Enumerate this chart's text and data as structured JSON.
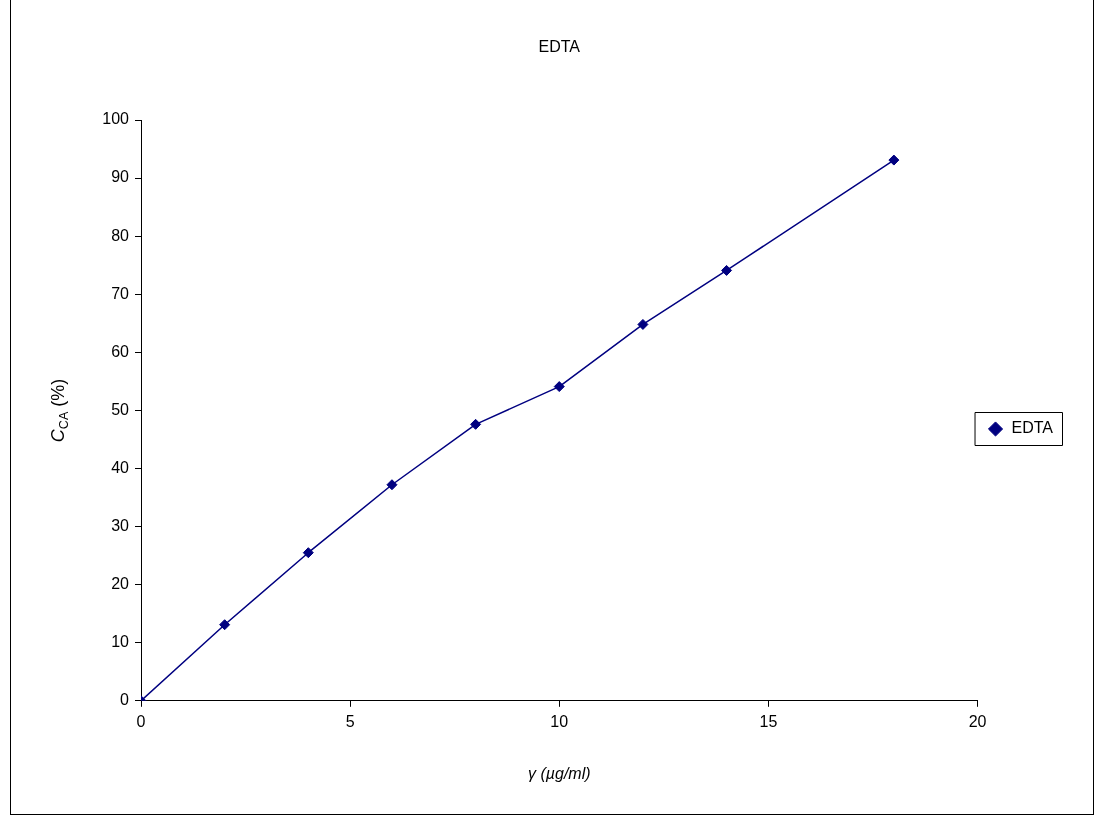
{
  "chart_data": {
    "type": "line",
    "title": "EDTA",
    "xlabel": "γ (µg/ml)",
    "ylabel": "C$_{CA}$ (%)",
    "x": [
      0,
      2,
      4,
      6,
      8,
      10,
      12,
      14,
      18
    ],
    "series": [
      {
        "name": "EDTA",
        "color": "#000080",
        "values": [
          0,
          13.1,
          25.5,
          37.2,
          47.6,
          54.1,
          64.8,
          74.1,
          93.1
        ]
      }
    ],
    "xlim": [
      0,
      20
    ],
    "xticks": [
      0,
      5,
      10,
      15,
      20
    ],
    "ylim": [
      0,
      100
    ],
    "yticks": [
      0,
      10,
      20,
      30,
      40,
      50,
      60,
      70,
      80,
      90,
      100
    ],
    "grid": false,
    "legend": "right",
    "marker": "diamond",
    "line_style": "solid"
  }
}
